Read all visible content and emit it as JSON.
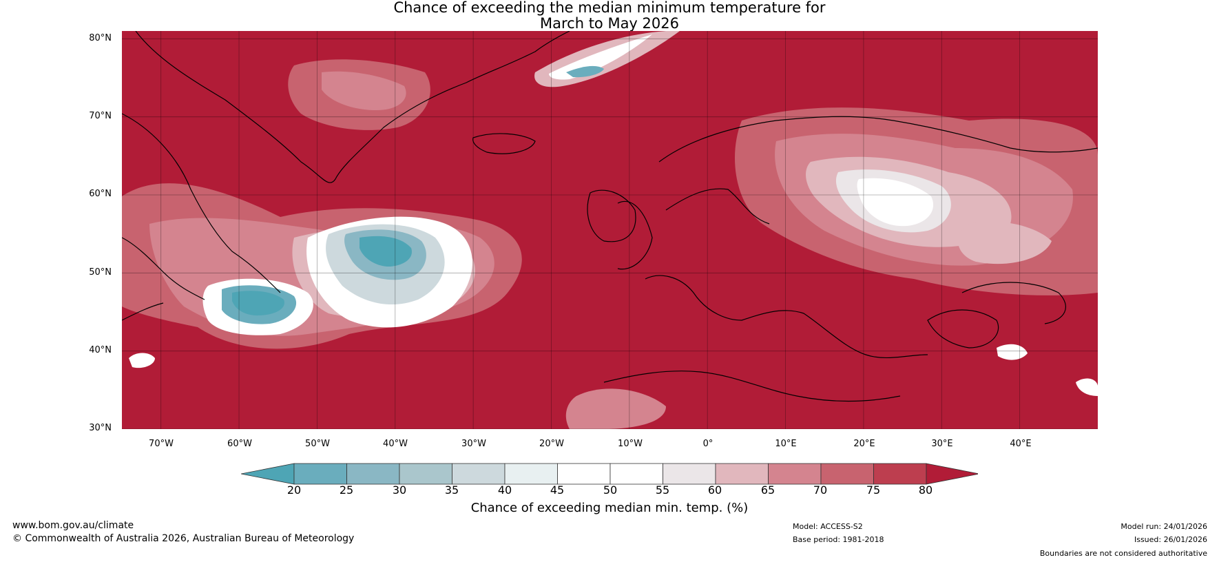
{
  "title": {
    "line1": "Chance of exceeding the median minimum temperature for",
    "line2": "March to May 2026"
  },
  "map": {
    "background_color": "#b11c37",
    "lat_labels": [
      {
        "value": 80,
        "text": "80°N"
      },
      {
        "value": 70,
        "text": "70°N"
      },
      {
        "value": 60,
        "text": "60°N"
      },
      {
        "value": 50,
        "text": "50°N"
      },
      {
        "value": 40,
        "text": "40°N"
      },
      {
        "value": 30,
        "text": "30°N"
      }
    ],
    "lon_labels": [
      {
        "value": -70,
        "text": "70°W"
      },
      {
        "value": -60,
        "text": "60°W"
      },
      {
        "value": -50,
        "text": "50°W"
      },
      {
        "value": -40,
        "text": "40°W"
      },
      {
        "value": -30,
        "text": "30°W"
      },
      {
        "value": -20,
        "text": "20°W"
      },
      {
        "value": -10,
        "text": "10°W"
      },
      {
        "value": 0,
        "text": "0°"
      },
      {
        "value": 10,
        "text": "10°E"
      },
      {
        "value": 20,
        "text": "20°E"
      },
      {
        "value": 30,
        "text": "30°E"
      },
      {
        "value": 40,
        "text": "40°E"
      }
    ],
    "lon_range": [
      -75,
      50
    ],
    "lat_range": [
      30,
      81
    ]
  },
  "colorbar": {
    "ticks": [
      "20",
      "25",
      "30",
      "35",
      "40",
      "45",
      "50",
      "55",
      "60",
      "65",
      "70",
      "75",
      "80"
    ],
    "colors": [
      "#4ea5b5",
      "#6aadbd",
      "#8ab7c4",
      "#aac6cc",
      "#cdd9dd",
      "#e8f0f1",
      "#ffffff",
      "#ffffff",
      "#ebe6e8",
      "#e1b7bd",
      "#d4848f",
      "#c8636f",
      "#bd3e4f",
      "#b11c37"
    ],
    "label": "Chance of exceeding median min. temp. (%)"
  },
  "footer": {
    "website": "www.bom.gov.au/climate",
    "copyright": "© Commonwealth of Australia 2026, Australian Bureau of Meteorology",
    "model": "Model: ACCESS-S2",
    "base_period": "Base period: 1981-2018",
    "model_run": "Model run: 24/01/2026",
    "issued": "Issued: 26/01/2026",
    "disclaimer": "Boundaries are not considered authoritative"
  }
}
